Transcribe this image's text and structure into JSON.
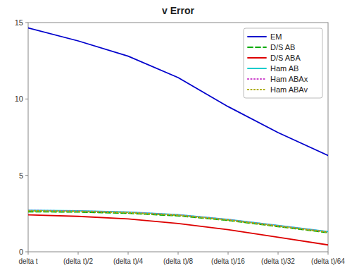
{
  "chart_data": {
    "type": "line",
    "title": "v Error",
    "categories": [
      "delta t",
      "(delta t)/2",
      "(delta t)/4",
      "(delta t)/8",
      "(delta t)/16",
      "(delta t)/32",
      "(delta t)/64"
    ],
    "series": [
      {
        "name": "EM",
        "color": "#0000cc",
        "line_style": "solid",
        "values": [
          14.65,
          13.8,
          12.8,
          11.4,
          9.5,
          7.8,
          6.3
        ]
      },
      {
        "name": "D/S AB",
        "color": "#00aa00",
        "line_style": "dashed",
        "values": [
          2.62,
          2.6,
          2.52,
          2.35,
          2.05,
          1.65,
          1.25
        ]
      },
      {
        "name": "D/S ABA",
        "color": "#dd0000",
        "line_style": "solid",
        "values": [
          2.42,
          2.32,
          2.15,
          1.85,
          1.45,
          0.95,
          0.45
        ]
      },
      {
        "name": "Ham AB",
        "color": "#00cccc",
        "line_style": "solid",
        "values": [
          2.72,
          2.68,
          2.6,
          2.43,
          2.12,
          1.72,
          1.32
        ]
      },
      {
        "name": "Ham ABAx",
        "color": "#cc44cc",
        "line_style": "dotted",
        "values": [
          2.7,
          2.66,
          2.58,
          2.41,
          2.1,
          1.7,
          1.3
        ]
      },
      {
        "name": "Ham ABAv",
        "color": "#aaaa00",
        "line_style": "dotted",
        "values": [
          2.68,
          2.64,
          2.56,
          2.39,
          2.08,
          1.68,
          1.28
        ]
      }
    ],
    "ylim": [
      0,
      15
    ],
    "yticks": [
      0,
      5,
      10,
      15
    ],
    "legend": "upper right",
    "grid": false
  }
}
